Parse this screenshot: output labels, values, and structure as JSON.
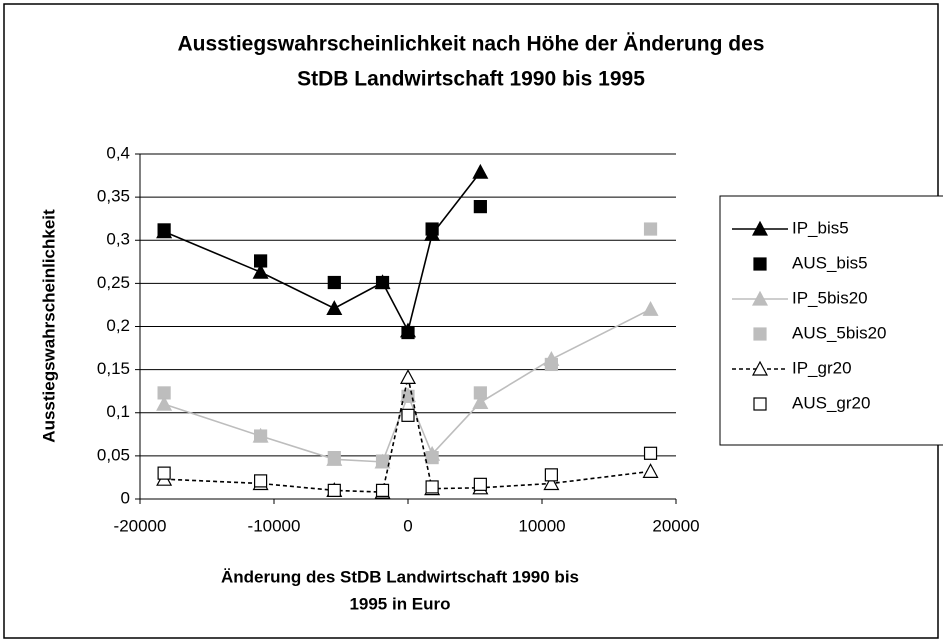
{
  "chart_data": {
    "type": "line",
    "title": [
      "Ausstiegswahrscheinlichkeit nach Höhe der Änderung des",
      "StDB Landwirtschaft 1990 bis 1995"
    ],
    "x_label": [
      "Änderung des StDB Landwirtschaft 1990 bis",
      "1995 in Euro"
    ],
    "y_label": "Ausstiegswahrscheinlichkeit",
    "x": [
      -18200,
      -11000,
      -5500,
      -1900,
      0,
      1800,
      5400,
      10700,
      18100
    ],
    "series": [
      {
        "name": "IP_bis5",
        "color": "#000000",
        "line": "solid",
        "marker": "triangle",
        "marker_fill": true,
        "values": [
          0.31,
          0.263,
          0.221,
          0.251,
          0.195,
          0.307,
          0.379,
          null,
          null
        ]
      },
      {
        "name": "AUS_bis5",
        "color": "#000000",
        "line": "none",
        "marker": "square",
        "marker_fill": true,
        "values": [
          0.312,
          0.276,
          0.251,
          0.251,
          0.193,
          0.313,
          0.339,
          null,
          null
        ]
      },
      {
        "name": "IP_5bis20",
        "color": "#bdbdbd",
        "line": "solid",
        "marker": "triangle",
        "marker_fill": true,
        "values": [
          0.11,
          0.073,
          0.046,
          0.043,
          0.12,
          0.052,
          0.112,
          0.162,
          0.22
        ]
      },
      {
        "name": "AUS_5bis20",
        "color": "#bdbdbd",
        "line": "none",
        "marker": "square",
        "marker_fill": true,
        "values": [
          0.123,
          0.073,
          0.048,
          0.044,
          0.119,
          0.048,
          0.123,
          0.156,
          0.313
        ]
      },
      {
        "name": "IP_gr20",
        "color": "#000000",
        "line": "dashed",
        "marker": "triangle",
        "marker_fill": false,
        "values": [
          0.023,
          0.018,
          0.01,
          0.008,
          0.141,
          0.012,
          0.013,
          0.018,
          0.032
        ]
      },
      {
        "name": "AUS_gr20",
        "color": "#000000",
        "line": "none",
        "marker": "square",
        "marker_fill": false,
        "values": [
          0.03,
          0.021,
          0.01,
          0.01,
          0.097,
          0.014,
          0.017,
          0.028,
          0.053
        ]
      }
    ],
    "xlim": [
      -20000,
      20000
    ],
    "xticks": [
      -20000,
      -10000,
      0,
      10000,
      20000
    ],
    "ylim": [
      0,
      0.4
    ],
    "yticks": [
      0,
      {
        "value": 0.05,
        "label": "0,05"
      },
      {
        "value": 0.1,
        "label": "0,1"
      },
      {
        "value": 0.15,
        "label": "0,15"
      },
      {
        "value": 0.2,
        "label": "0,2"
      },
      {
        "value": 0.25,
        "label": "0,25"
      },
      {
        "value": 0.3,
        "label": "0,3"
      },
      {
        "value": 0.35,
        "label": "0,35"
      },
      {
        "value": 0.4,
        "label": "0,4"
      }
    ],
    "grid": true,
    "legend": "right"
  }
}
